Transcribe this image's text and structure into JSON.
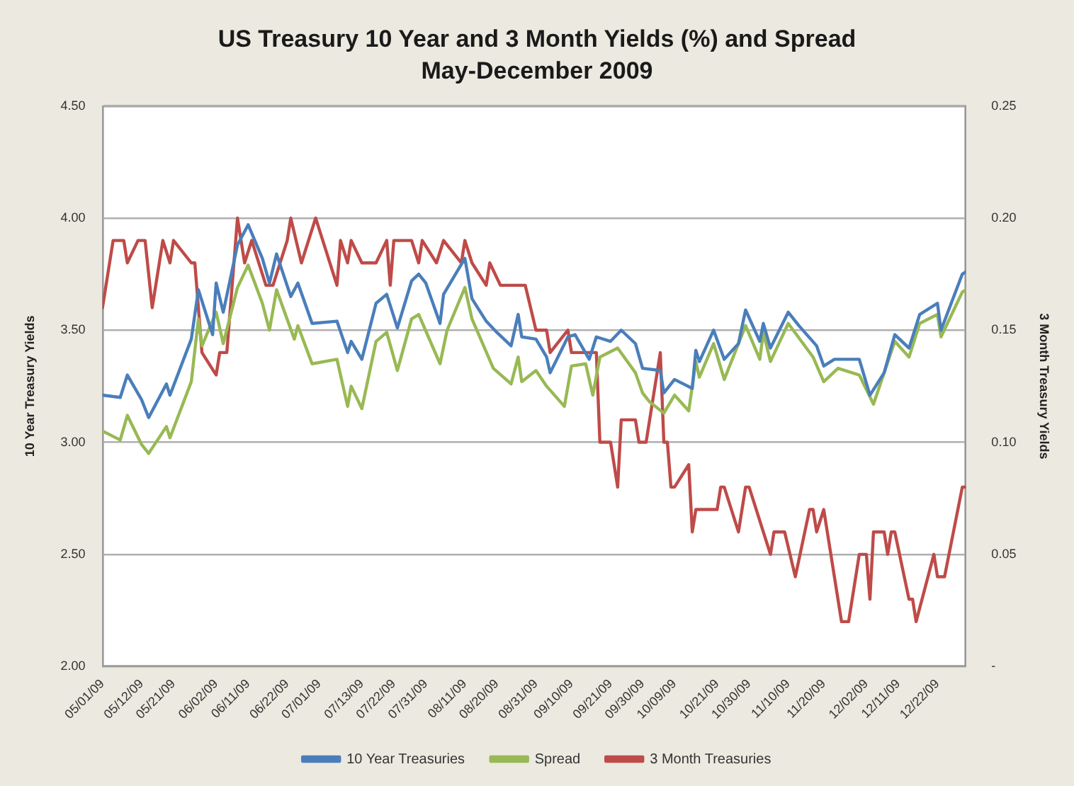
{
  "chart_data": {
    "type": "line",
    "title": "US Treasury 10 Year and 3 Month Yields (%) and Spread",
    "subtitle": "May-December 2009",
    "ylabel": "10 Year Treasury Yields",
    "y2label": "3 Month Treasury Yields",
    "xlim": [
      "2009-05-01",
      "2009-12-30"
    ],
    "xticks": [
      {
        "value": "2009-05-01",
        "label": "05/01/09"
      },
      {
        "value": "2009-05-12",
        "label": "05/12/09"
      },
      {
        "value": "2009-05-21",
        "label": "05/21/09"
      },
      {
        "value": "2009-06-02",
        "label": "06/02/09"
      },
      {
        "value": "2009-06-11",
        "label": "06/11/09"
      },
      {
        "value": "2009-06-22",
        "label": "06/22/09"
      },
      {
        "value": "2009-07-01",
        "label": "07/01/09"
      },
      {
        "value": "2009-07-13",
        "label": "07/13/09"
      },
      {
        "value": "2009-07-22",
        "label": "07/22/09"
      },
      {
        "value": "2009-07-31",
        "label": "07/31/09"
      },
      {
        "value": "2009-08-11",
        "label": "08/11/09"
      },
      {
        "value": "2009-08-20",
        "label": "08/20/09"
      },
      {
        "value": "2009-08-31",
        "label": "08/31/09"
      },
      {
        "value": "2009-09-10",
        "label": "09/10/09"
      },
      {
        "value": "2009-09-21",
        "label": "09/21/09"
      },
      {
        "value": "2009-09-30",
        "label": "09/30/09"
      },
      {
        "value": "2009-10-09",
        "label": "10/09/09"
      },
      {
        "value": "2009-10-21",
        "label": "10/21/09"
      },
      {
        "value": "2009-10-30",
        "label": "10/30/09"
      },
      {
        "value": "2009-11-10",
        "label": "11/10/09"
      },
      {
        "value": "2009-11-20",
        "label": "11/20/09"
      },
      {
        "value": "2009-12-02",
        "label": "12/02/09"
      },
      {
        "value": "2009-12-11",
        "label": "12/11/09"
      },
      {
        "value": "2009-12-22",
        "label": "12/22/09"
      }
    ],
    "ylim": [
      2,
      4.5
    ],
    "yticks": [
      {
        "value": 2,
        "label": "2.00"
      },
      {
        "value": 2.5,
        "label": "2.50"
      },
      {
        "value": 3,
        "label": "3.00"
      },
      {
        "value": 3.5,
        "label": "3.50"
      },
      {
        "value": 4,
        "label": "4.00"
      },
      {
        "value": 4.5,
        "label": "4.50"
      }
    ],
    "y2lim": [
      0,
      0.25
    ],
    "y2ticks": [
      {
        "value": 0,
        "label": "-"
      },
      {
        "value": 0.05,
        "label": "0.05"
      },
      {
        "value": 0.1,
        "label": "0.10"
      },
      {
        "value": 0.15,
        "label": "0.15"
      },
      {
        "value": 0.2,
        "label": "0.20"
      },
      {
        "value": 0.25,
        "label": "0.25"
      }
    ],
    "grid": "y",
    "legend": "bottom",
    "marker": "none",
    "line_style": "solid",
    "series": [
      {
        "name": "10 Year Treasuries",
        "color": "#4a7ebb",
        "x": [
          "2009-05-01",
          "2009-05-06",
          "2009-05-08",
          "2009-05-12",
          "2009-05-14",
          "2009-05-19",
          "2009-05-20",
          "2009-05-26",
          "2009-05-28",
          "2009-06-01",
          "2009-06-02",
          "2009-06-04",
          "2009-06-08",
          "2009-06-11",
          "2009-06-15",
          "2009-06-17",
          "2009-06-19",
          "2009-06-23",
          "2009-06-25",
          "2009-06-29",
          "2009-07-06",
          "2009-07-09",
          "2009-07-10",
          "2009-07-13",
          "2009-07-17",
          "2009-07-20",
          "2009-07-23",
          "2009-07-27",
          "2009-07-29",
          "2009-07-31",
          "2009-08-04",
          "2009-08-05",
          "2009-08-11",
          "2009-08-13",
          "2009-08-17",
          "2009-08-20",
          "2009-08-24",
          "2009-08-26",
          "2009-08-27",
          "2009-08-31",
          "2009-09-03",
          "2009-09-04",
          "2009-09-09",
          "2009-09-11",
          "2009-09-15",
          "2009-09-17",
          "2009-09-21",
          "2009-09-24",
          "2009-09-28",
          "2009-09-30",
          "2009-10-05",
          "2009-10-06",
          "2009-10-09",
          "2009-10-14",
          "2009-10-15",
          "2009-10-16",
          "2009-10-20",
          "2009-10-23",
          "2009-10-27",
          "2009-10-29",
          "2009-11-02",
          "2009-11-03",
          "2009-11-05",
          "2009-11-10",
          "2009-11-13",
          "2009-11-18",
          "2009-11-20",
          "2009-11-23",
          "2009-11-30",
          "2009-12-03",
          "2009-12-07",
          "2009-12-10",
          "2009-12-14",
          "2009-12-17",
          "2009-12-22",
          "2009-12-23",
          "2009-12-29",
          "2009-12-30"
        ],
        "values": [
          3.21,
          3.2,
          3.3,
          3.19,
          3.11,
          3.26,
          3.21,
          3.46,
          3.68,
          3.48,
          3.71,
          3.58,
          3.88,
          3.97,
          3.82,
          3.71,
          3.84,
          3.65,
          3.71,
          3.53,
          3.54,
          3.4,
          3.45,
          3.37,
          3.62,
          3.66,
          3.51,
          3.72,
          3.75,
          3.71,
          3.53,
          3.66,
          3.82,
          3.64,
          3.54,
          3.49,
          3.43,
          3.57,
          3.47,
          3.46,
          3.38,
          3.31,
          3.47,
          3.48,
          3.37,
          3.47,
          3.45,
          3.5,
          3.44,
          3.33,
          3.32,
          3.22,
          3.28,
          3.24,
          3.41,
          3.36,
          3.5,
          3.37,
          3.44,
          3.59,
          3.45,
          3.53,
          3.42,
          3.58,
          3.52,
          3.43,
          3.34,
          3.37,
          3.37,
          3.21,
          3.31,
          3.48,
          3.42,
          3.57,
          3.62,
          3.5,
          3.75,
          3.76
        ]
      },
      {
        "name": "Spread",
        "color": "#98b954",
        "x": [
          "2009-05-01",
          "2009-05-06",
          "2009-05-08",
          "2009-05-12",
          "2009-05-14",
          "2009-05-19",
          "2009-05-20",
          "2009-05-26",
          "2009-05-28",
          "2009-05-29",
          "2009-06-02",
          "2009-06-04",
          "2009-06-08",
          "2009-06-11",
          "2009-06-15",
          "2009-06-17",
          "2009-06-19",
          "2009-06-24",
          "2009-06-25",
          "2009-06-29",
          "2009-07-06",
          "2009-07-09",
          "2009-07-10",
          "2009-07-13",
          "2009-07-17",
          "2009-07-20",
          "2009-07-23",
          "2009-07-27",
          "2009-07-29",
          "2009-08-04",
          "2009-08-06",
          "2009-08-11",
          "2009-08-13",
          "2009-08-19",
          "2009-08-24",
          "2009-08-26",
          "2009-08-27",
          "2009-08-31",
          "2009-09-03",
          "2009-09-08",
          "2009-09-10",
          "2009-09-14",
          "2009-09-16",
          "2009-09-18",
          "2009-09-23",
          "2009-09-28",
          "2009-09-30",
          "2009-10-02",
          "2009-10-06",
          "2009-10-09",
          "2009-10-13",
          "2009-10-15",
          "2009-10-16",
          "2009-10-20",
          "2009-10-23",
          "2009-10-29",
          "2009-11-02",
          "2009-11-03",
          "2009-11-05",
          "2009-11-10",
          "2009-11-17",
          "2009-11-20",
          "2009-11-24",
          "2009-11-30",
          "2009-12-04",
          "2009-12-10",
          "2009-12-14",
          "2009-12-17",
          "2009-12-22",
          "2009-12-23",
          "2009-12-29",
          "2009-12-30"
        ],
        "values": [
          3.05,
          3.01,
          3.12,
          2.99,
          2.95,
          3.07,
          3.02,
          3.27,
          3.55,
          3.43,
          3.58,
          3.44,
          3.69,
          3.79,
          3.62,
          3.5,
          3.68,
          3.46,
          3.52,
          3.35,
          3.37,
          3.16,
          3.25,
          3.15,
          3.45,
          3.49,
          3.32,
          3.55,
          3.57,
          3.35,
          3.5,
          3.69,
          3.55,
          3.33,
          3.26,
          3.38,
          3.27,
          3.32,
          3.25,
          3.16,
          3.34,
          3.35,
          3.21,
          3.38,
          3.42,
          3.31,
          3.22,
          3.18,
          3.13,
          3.21,
          3.14,
          3.36,
          3.29,
          3.44,
          3.28,
          3.52,
          3.37,
          3.49,
          3.36,
          3.53,
          3.38,
          3.27,
          3.33,
          3.3,
          3.17,
          3.45,
          3.38,
          3.53,
          3.57,
          3.47,
          3.67,
          3.68
        ]
      },
      {
        "name": "3 Month Treasuries",
        "color": "#be4b48",
        "axis": "y2",
        "x": [
          "2009-05-01",
          "2009-05-04",
          "2009-05-07",
          "2009-05-08",
          "2009-05-11",
          "2009-05-13",
          "2009-05-15",
          "2009-05-18",
          "2009-05-20",
          "2009-05-21",
          "2009-05-26",
          "2009-05-27",
          "2009-05-29",
          "2009-06-02",
          "2009-06-03",
          "2009-06-05",
          "2009-06-08",
          "2009-06-10",
          "2009-06-12",
          "2009-06-16",
          "2009-06-18",
          "2009-06-22",
          "2009-06-23",
          "2009-06-26",
          "2009-06-30",
          "2009-07-06",
          "2009-07-07",
          "2009-07-09",
          "2009-07-10",
          "2009-07-13",
          "2009-07-17",
          "2009-07-20",
          "2009-07-21",
          "2009-07-22",
          "2009-07-27",
          "2009-07-29",
          "2009-07-30",
          "2009-08-03",
          "2009-08-05",
          "2009-08-10",
          "2009-08-11",
          "2009-08-13",
          "2009-08-17",
          "2009-08-18",
          "2009-08-21",
          "2009-08-28",
          "2009-08-31",
          "2009-09-03",
          "2009-09-04",
          "2009-09-09",
          "2009-09-10",
          "2009-09-17",
          "2009-09-18",
          "2009-09-21",
          "2009-09-23",
          "2009-09-24",
          "2009-09-28",
          "2009-09-29",
          "2009-10-01",
          "2009-10-05",
          "2009-10-06",
          "2009-10-07",
          "2009-10-08",
          "2009-10-09",
          "2009-10-13",
          "2009-10-14",
          "2009-10-15",
          "2009-10-21",
          "2009-10-22",
          "2009-10-23",
          "2009-10-27",
          "2009-10-29",
          "2009-10-30",
          "2009-11-05",
          "2009-11-06",
          "2009-11-09",
          "2009-11-12",
          "2009-11-16",
          "2009-11-17",
          "2009-11-18",
          "2009-11-20",
          "2009-11-25",
          "2009-11-27",
          "2009-11-30",
          "2009-12-02",
          "2009-12-03",
          "2009-12-04",
          "2009-12-07",
          "2009-12-08",
          "2009-12-09",
          "2009-12-10",
          "2009-12-14",
          "2009-12-15",
          "2009-12-16",
          "2009-12-21",
          "2009-12-22",
          "2009-12-24",
          "2009-12-29",
          "2009-12-30"
        ],
        "values": [
          0.16,
          0.19,
          0.19,
          0.18,
          0.19,
          0.19,
          0.16,
          0.19,
          0.18,
          0.19,
          0.18,
          0.18,
          0.14,
          0.13,
          0.14,
          0.14,
          0.2,
          0.18,
          0.19,
          0.17,
          0.17,
          0.19,
          0.2,
          0.18,
          0.2,
          0.17,
          0.19,
          0.18,
          0.19,
          0.18,
          0.18,
          0.19,
          0.17,
          0.19,
          0.19,
          0.18,
          0.19,
          0.18,
          0.19,
          0.18,
          0.19,
          0.18,
          0.17,
          0.18,
          0.17,
          0.17,
          0.15,
          0.15,
          0.14,
          0.15,
          0.14,
          0.14,
          0.1,
          0.1,
          0.08,
          0.11,
          0.11,
          0.1,
          0.1,
          0.14,
          0.1,
          0.1,
          0.08,
          0.08,
          0.09,
          0.06,
          0.07,
          0.07,
          0.08,
          0.08,
          0.06,
          0.08,
          0.08,
          0.05,
          0.06,
          0.06,
          0.04,
          0.07,
          0.07,
          0.06,
          0.07,
          0.02,
          0.02,
          0.05,
          0.05,
          0.03,
          0.06,
          0.06,
          0.05,
          0.06,
          0.06,
          0.03,
          0.03,
          0.02,
          0.05,
          0.04,
          0.04,
          0.08,
          0.08
        ]
      }
    ]
  }
}
